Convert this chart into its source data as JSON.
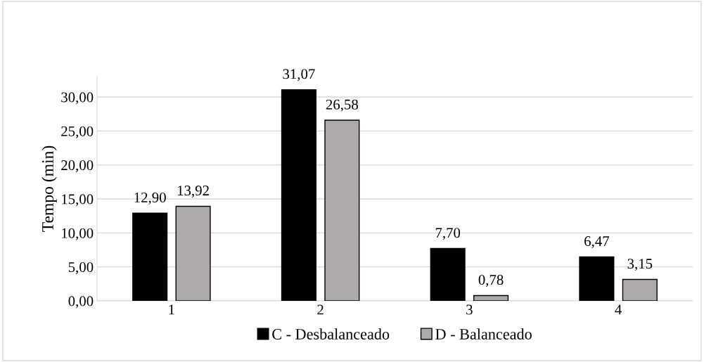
{
  "chart_data": {
    "type": "bar",
    "ylabel": "Tempo (min)",
    "categories": [
      "1",
      "2",
      "3",
      "4"
    ],
    "series": [
      {
        "name": "C - Desbalanceado",
        "color": "#000000",
        "values": [
          12.9,
          31.07,
          7.7,
          6.47
        ],
        "value_labels": [
          "12,90",
          "31,07",
          "7,70",
          "6,47"
        ]
      },
      {
        "name": "D - Balanceado",
        "color": "#aeaaaa",
        "values": [
          13.92,
          26.58,
          0.78,
          3.15
        ],
        "value_labels": [
          "13,92",
          "26,58",
          "0,78",
          "3,15"
        ]
      }
    ],
    "ylim": [
      0,
      33
    ],
    "yticks": [
      {
        "value": 0,
        "label": "0,00"
      },
      {
        "value": 5,
        "label": "5,00"
      },
      {
        "value": 10,
        "label": "10,00"
      },
      {
        "value": 15,
        "label": "15,00"
      },
      {
        "value": 20,
        "label": "20,00"
      },
      {
        "value": 25,
        "label": "25,00"
      },
      {
        "value": 30,
        "label": "30,00"
      }
    ],
    "grid": "y",
    "legend": "bottom"
  }
}
